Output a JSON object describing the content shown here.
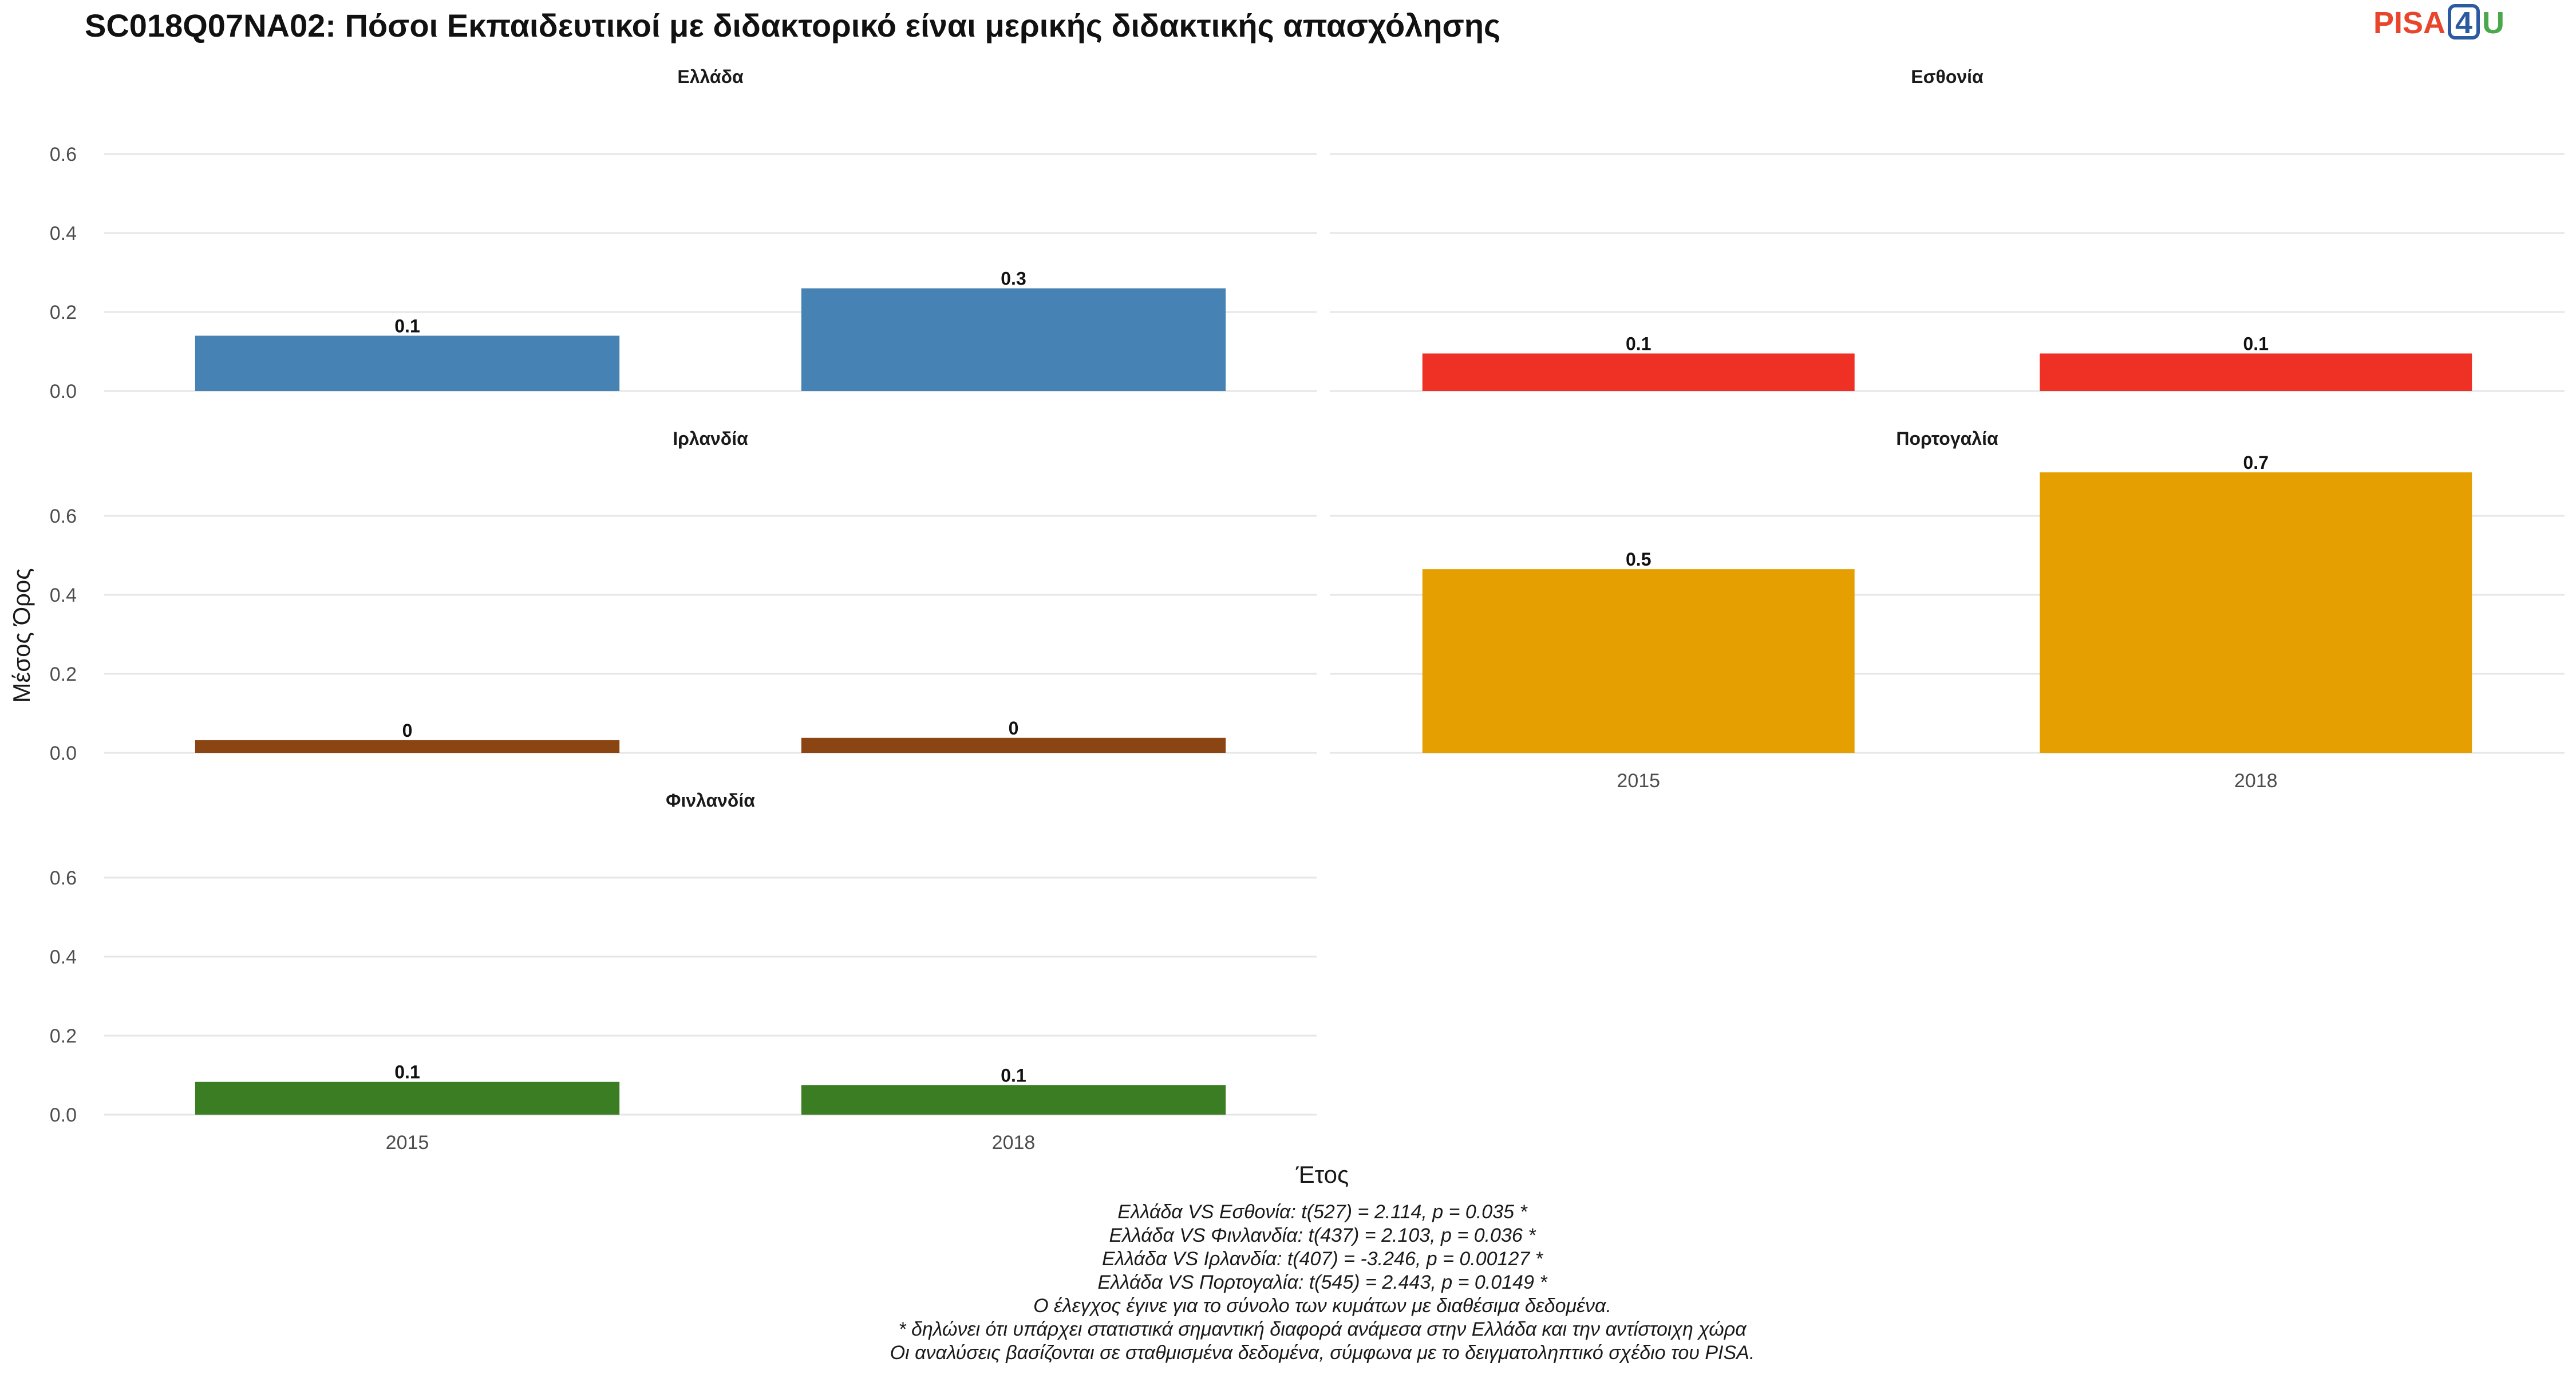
{
  "title": "SC018Q07NA02: Πόσοι Εκπαιδευτικοί με διδακτορικό είναι μερικής διδακτικής απασχόλησης",
  "logo": {
    "part1": "PISA",
    "part2": "4",
    "part3": "U",
    "color1": "#e8452c",
    "color2": "#2c5aa0",
    "color3": "#4aa84a"
  },
  "chart_data": {
    "type": "bar",
    "layout": "facet-grid-3x2",
    "xlabel": "Έτος",
    "ylabel": "Μέσος Όρος",
    "ylim": [
      0,
      0.72
    ],
    "yticks": [
      0.0,
      0.2,
      0.4,
      0.6
    ],
    "ytick_labels": [
      "0.0",
      "0.2",
      "0.4",
      "0.6"
    ],
    "categories": [
      "2015",
      "2018"
    ],
    "grid": true,
    "legend": "none",
    "facets": [
      {
        "name": "Ελλάδα",
        "color": "#4682b4",
        "values": [
          0.14,
          0.26
        ],
        "labels": [
          "0.1",
          "0.3"
        ]
      },
      {
        "name": "Εσθονία",
        "color": "#ee3124",
        "values": [
          0.095,
          0.095
        ],
        "labels": [
          "0.1",
          "0.1"
        ]
      },
      {
        "name": "Ιρλανδία",
        "color": "#8b4513",
        "values": [
          0.032,
          0.038
        ],
        "labels": [
          "0",
          "0"
        ]
      },
      {
        "name": "Πορτογαλία",
        "color": "#e69f00",
        "values": [
          0.465,
          0.71
        ],
        "labels": [
          "0.5",
          "0.7"
        ]
      },
      {
        "name": "Φινλανδία",
        "color": "#3a7d22",
        "values": [
          0.083,
          0.075
        ],
        "labels": [
          "0.1",
          "0.1"
        ]
      }
    ]
  },
  "caption_lines": [
    "Ελλάδα VS Εσθονία: t(527) = 2.114, p = 0.035 *",
    "Ελλάδα VS Φινλανδία: t(437) = 2.103, p = 0.036 *",
    "Ελλάδα VS Ιρλανδία: t(407) = -3.246, p = 0.00127 *",
    "Ελλάδα VS Πορτογαλία: t(545) = 2.443, p = 0.0149 *",
    "Ο έλεγχος έγινε για το σύνολο των κυμάτων με διαθέσιμα δεδομένα.",
    "* δηλώνει ότι υπάρχει στατιστικά σημαντική διαφορά ανάμεσα στην Ελλάδα και την αντίστοιχη χώρα",
    "Οι αναλύσεις βασίζονται σε σταθμισμένα δεδομένα, σύμφωνα με το δειγματοληπτικό σχέδιο του PISA."
  ]
}
